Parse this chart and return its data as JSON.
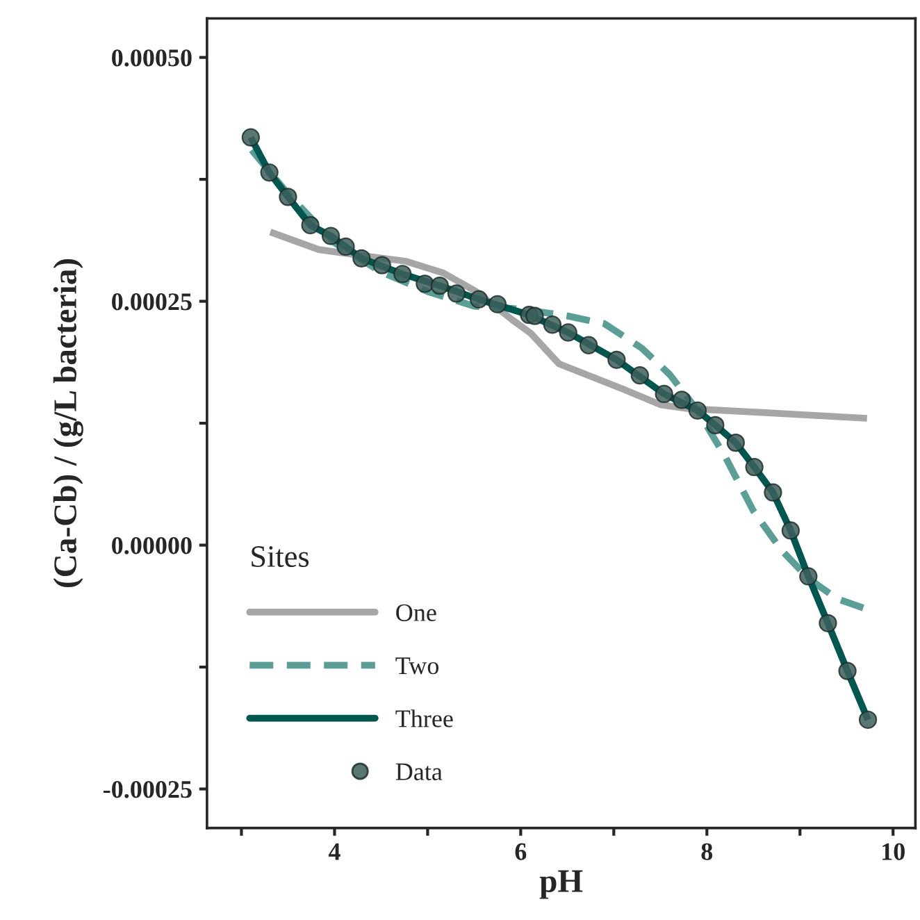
{
  "chart_data": {
    "type": "line",
    "xlabel": "pH",
    "ylabel": "(Ca-Cb) / (g/L bacteria)",
    "legend_title": "Sites",
    "legend": "bottom left",
    "grid": false,
    "xlim": [
      2.63,
      10.24
    ],
    "ylim": [
      -0.00029,
      0.00054
    ],
    "xticks": [
      {
        "value": 3,
        "label": null
      },
      4,
      {
        "value": 5,
        "label": null
      },
      6,
      {
        "value": 7,
        "label": null
      },
      8,
      {
        "value": 9,
        "label": null
      },
      10
    ],
    "yticks": [
      {
        "value": -0.00025,
        "label": "-0.00025"
      },
      {
        "value": -0.000125,
        "label": null
      },
      {
        "value": 0,
        "label": "0.00000"
      },
      {
        "value": 0.000125,
        "label": null
      },
      {
        "value": 0.00025,
        "label": "0.00025"
      },
      {
        "value": 0.000375,
        "label": null
      },
      {
        "value": 0.0005,
        "label": "0.00050"
      }
    ],
    "series": [
      {
        "name": "One",
        "color": "#a6a6a6",
        "line_style": "solid",
        "marker": "none",
        "x": [
          3.31,
          3.83,
          4.28,
          4.77,
          5.17,
          5.52,
          5.91,
          6.11,
          6.41,
          7.1,
          7.5,
          7.79,
          8.59,
          9.72
        ],
        "values": [
          0.000321,
          0.000303,
          0.000297,
          0.000291,
          0.000279,
          0.00026,
          0.000231,
          0.000217,
          0.000186,
          0.00016,
          0.000144,
          0.00014,
          0.000136,
          0.00013
        ]
      },
      {
        "name": "Two",
        "color": "#5a9e95",
        "line_style": "dashed",
        "marker": "none",
        "x": [
          3.11,
          3.5,
          4.0,
          4.5,
          5.0,
          5.5,
          6.0,
          6.5,
          6.9,
          7.3,
          7.6,
          7.9,
          8.2,
          8.5,
          8.8,
          9.1,
          9.4,
          9.7
        ],
        "values": [
          0.000405,
          0.00036,
          0.00031,
          0.00028,
          0.00026,
          0.000245,
          0.000242,
          0.000235,
          0.000227,
          0.000202,
          0.000175,
          0.000138,
          9e-05,
          3.5e-05,
          -5e-06,
          -3.5e-05,
          -5.5e-05,
          -6.5e-05
        ]
      },
      {
        "name": "Three",
        "color": "#00574f",
        "line_style": "solid",
        "marker": "none",
        "x": [
          3.1,
          3.3,
          3.5,
          3.74,
          3.96,
          4.29,
          4.73,
          5.13,
          5.55,
          6.09,
          6.51,
          7.03,
          7.54,
          7.9,
          8.09,
          8.31,
          8.51,
          8.71,
          8.9,
          9.09,
          9.3,
          9.51,
          9.73
        ],
        "values": [
          0.000418,
          0.000382,
          0.000357,
          0.000328,
          0.000317,
          0.000294,
          0.000278,
          0.000266,
          0.000252,
          0.000236,
          0.000218,
          0.00019,
          0.000155,
          0.000138,
          0.000123,
          0.000105,
          8e-05,
          5.4e-05,
          1.5e-05,
          -3.2e-05,
          -8e-05,
          -0.000129,
          -0.000179
        ]
      },
      {
        "name": "Data",
        "type": "scatter",
        "color": "#3d5f5a",
        "marker": "circle",
        "x": [
          3.1,
          3.3,
          3.5,
          3.74,
          3.96,
          4.12,
          4.29,
          4.51,
          4.73,
          4.97,
          5.13,
          5.31,
          5.55,
          5.75,
          6.09,
          6.15,
          6.34,
          6.51,
          6.73,
          7.03,
          7.28,
          7.54,
          7.73,
          7.9,
          8.09,
          8.31,
          8.51,
          8.71,
          8.9,
          9.09,
          9.3,
          9.51,
          9.73
        ],
        "values": [
          0.000418,
          0.000382,
          0.000357,
          0.000328,
          0.000317,
          0.000306,
          0.000294,
          0.000287,
          0.000278,
          0.000268,
          0.000266,
          0.000258,
          0.000252,
          0.000247,
          0.000236,
          0.000235,
          0.000226,
          0.000218,
          0.000205,
          0.00019,
          0.000174,
          0.000155,
          0.000149,
          0.000138,
          0.000123,
          0.000105,
          8e-05,
          5.4e-05,
          1.5e-05,
          -3.2e-05,
          -8e-05,
          -0.000129,
          -0.000179
        ]
      }
    ]
  }
}
